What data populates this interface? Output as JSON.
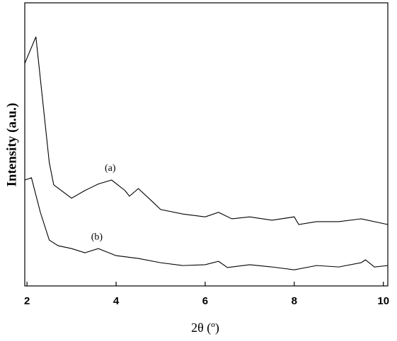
{
  "chart_data": {
    "type": "line",
    "x_label": "2θ (º)",
    "y_label": "Intensity (a.u.)",
    "xlim": [
      1.95,
      10.1
    ],
    "xticks": [
      2,
      4,
      6,
      8,
      10
    ],
    "ylim": [
      0,
      100
    ],
    "series": [
      {
        "name": "(a)",
        "color": "#000000",
        "x": [
          1.95,
          2.2,
          2.5,
          2.6,
          3.0,
          3.3,
          3.6,
          3.9,
          4.2,
          4.3,
          4.5,
          4.8,
          5.0,
          5.5,
          6.0,
          6.3,
          6.6,
          7.0,
          7.5,
          8.0,
          8.1,
          8.5,
          9.0,
          9.5,
          10.1
        ],
        "values": [
          78.6,
          88,
          43.6,
          35.7,
          31,
          33.7,
          36,
          37.4,
          33.7,
          31.7,
          34.4,
          30,
          27,
          25.4,
          24.4,
          26,
          23.7,
          24.4,
          23.2,
          24.4,
          21.7,
          22.7,
          22.7,
          23.7,
          21.7
        ]
      },
      {
        "name": "(b)",
        "color": "#000000",
        "x": [
          1.95,
          2.1,
          2.3,
          2.5,
          2.7,
          3.0,
          3.3,
          3.6,
          4.0,
          4.5,
          5.0,
          5.5,
          6.0,
          6.3,
          6.5,
          7.0,
          7.5,
          8.0,
          8.5,
          9.0,
          9.5,
          9.6,
          9.8,
          10.1
        ],
        "values": [
          37.4,
          38.2,
          26,
          16.2,
          14.2,
          13.2,
          11.7,
          13.2,
          10.7,
          9.7,
          8.2,
          7.2,
          7.5,
          8.7,
          6.5,
          7.5,
          6.7,
          5.7,
          7.2,
          6.7,
          8.2,
          9.2,
          6.7,
          7.2
        ]
      }
    ]
  }
}
